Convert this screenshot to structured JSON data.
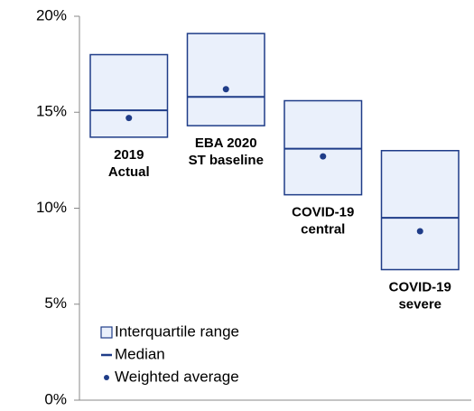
{
  "chart_data": {
    "type": "range",
    "categories": [
      [
        "2019",
        "Actual"
      ],
      [
        "EBA 2020",
        "ST baseline"
      ],
      [
        "COVID-19",
        "central"
      ],
      [
        "COVID-19",
        "severe"
      ]
    ],
    "series": [
      {
        "name": "Interquartile range",
        "color": "#1f3c88",
        "fill": "#eaf0fb",
        "low": [
          13.7,
          14.3,
          10.7,
          6.8
        ],
        "high": [
          18.0,
          19.1,
          15.6,
          13.0
        ]
      },
      {
        "name": "Median",
        "color": "#1f3c88",
        "values": [
          15.1,
          15.8,
          13.1,
          9.5
        ]
      },
      {
        "name": "Weighted average",
        "color": "#1f3c88",
        "values": [
          14.7,
          16.2,
          12.7,
          8.8
        ]
      }
    ],
    "ylim": [
      0,
      20
    ],
    "yticks": [
      {
        "value": 0,
        "label": "0%"
      },
      {
        "value": 5,
        "label": "5%"
      },
      {
        "value": 10,
        "label": "10%"
      },
      {
        "value": 15,
        "label": "15%"
      },
      {
        "value": 20,
        "label": "20%"
      }
    ]
  }
}
